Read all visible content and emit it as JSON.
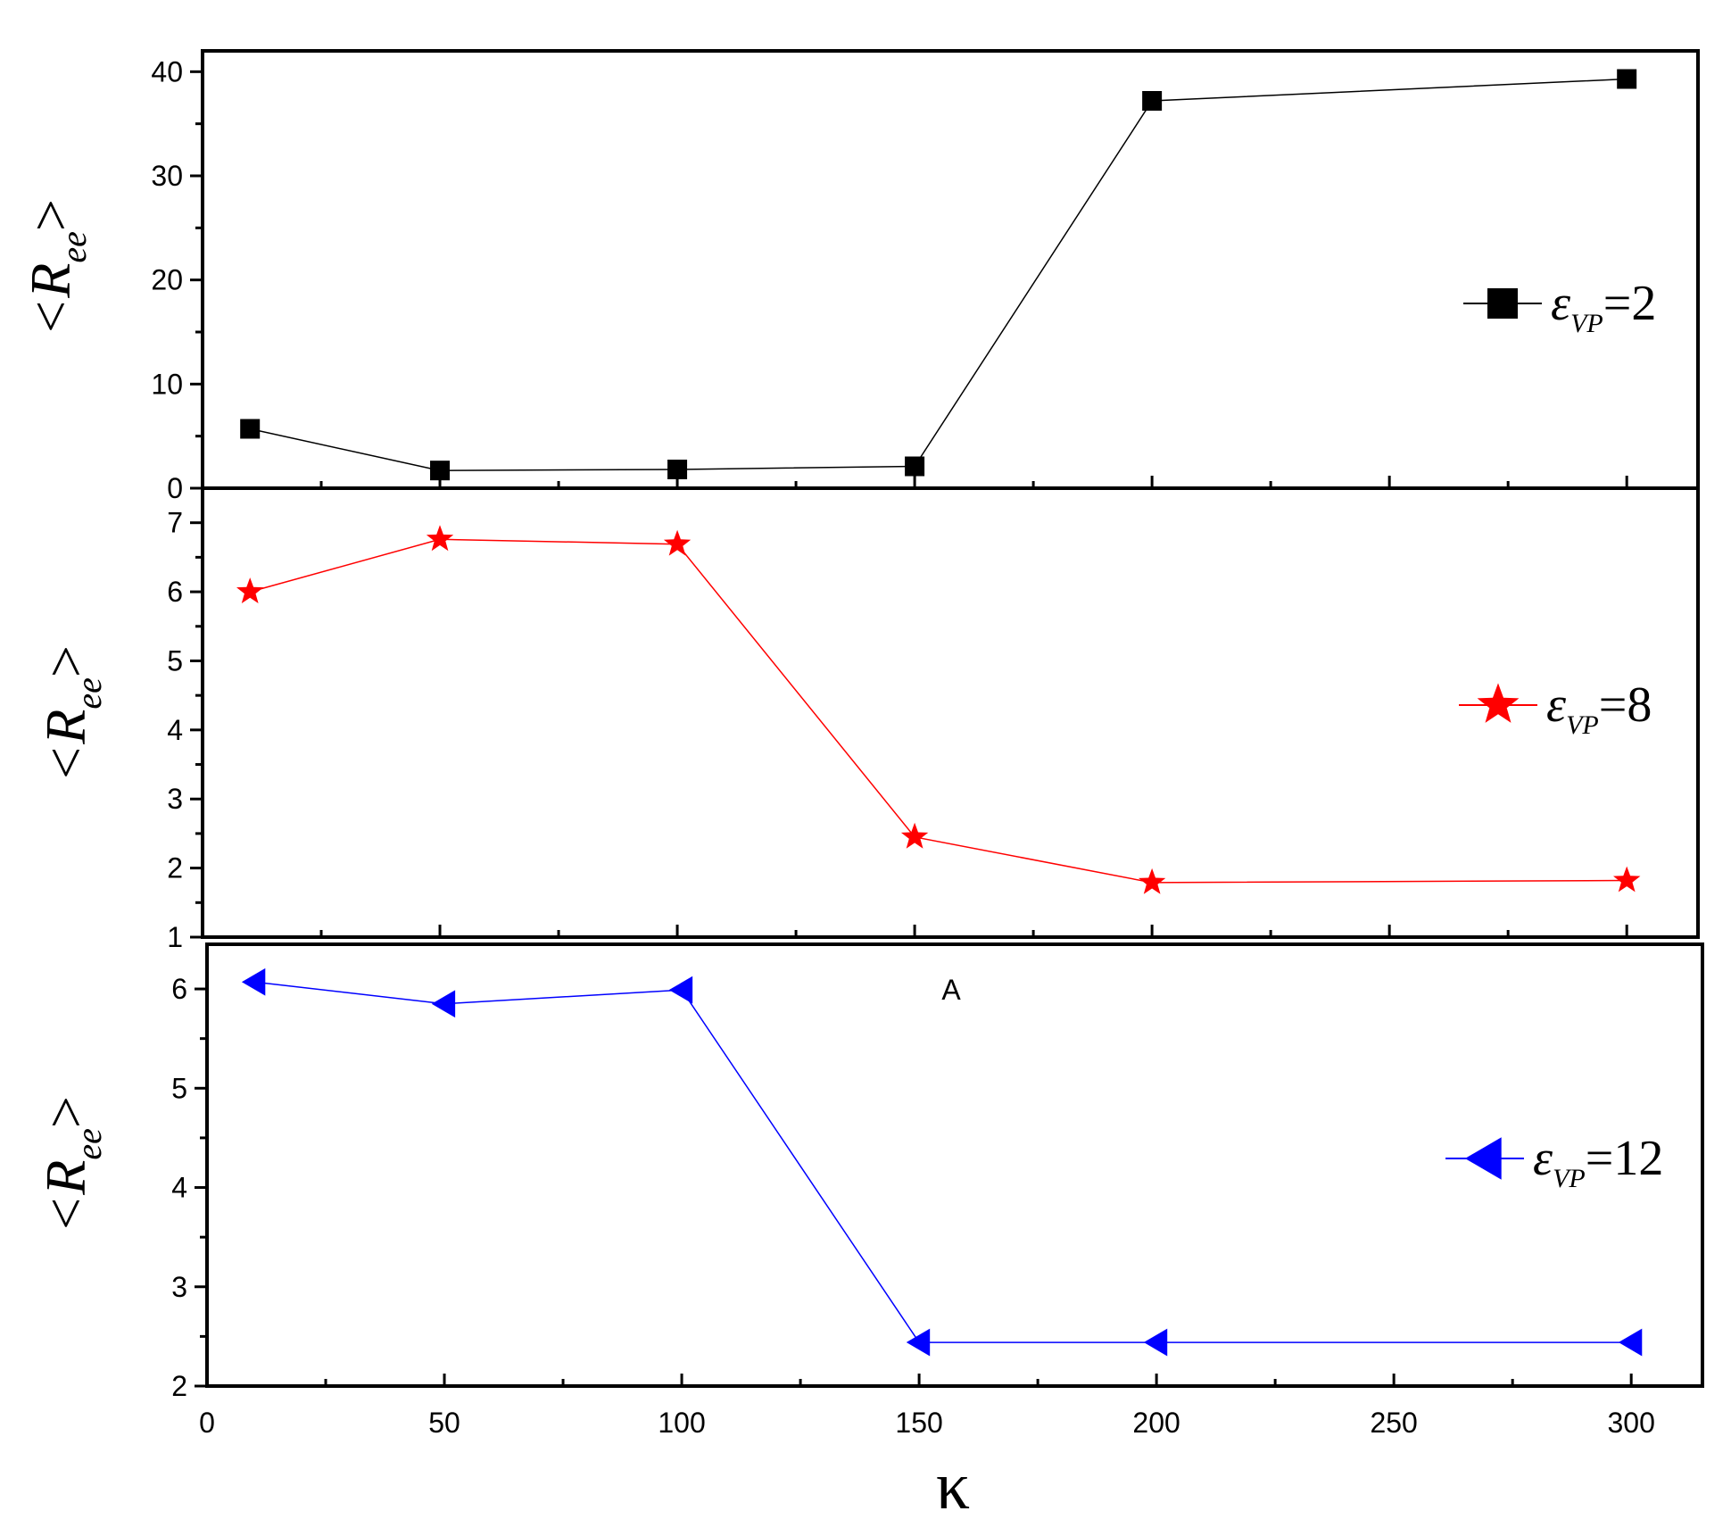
{
  "chart_data": [
    {
      "type": "line",
      "ylabel": "<R",
      "ylabel_sub": "ee",
      "ylabel_close": ">",
      "xlabel": "",
      "ylim": [
        0,
        42
      ],
      "yticks": [
        0,
        10,
        20,
        30,
        40
      ],
      "xlim": [
        0,
        315
      ],
      "xticks": [
        0,
        50,
        100,
        150,
        200,
        250,
        300
      ],
      "show_x_tick_labels": false,
      "series": [
        {
          "name": "ε",
          "legend_sub": "VP",
          "legend_value": "=2",
          "color": "#000000",
          "marker": "square",
          "x": [
            10,
            50,
            100,
            150,
            200,
            300
          ],
          "y": [
            5.7,
            1.7,
            1.8,
            2.1,
            37.2,
            39.3
          ]
        }
      ]
    },
    {
      "type": "line",
      "ylabel": "<R",
      "ylabel_sub": "ee",
      "ylabel_close": ">",
      "xlabel": "",
      "ylim": [
        1,
        7.5
      ],
      "yticks": [
        1,
        2,
        3,
        4,
        5,
        6,
        7
      ],
      "xlim": [
        0,
        315
      ],
      "xticks": [
        0,
        50,
        100,
        150,
        200,
        250,
        300
      ],
      "show_x_tick_labels": false,
      "series": [
        {
          "name": "ε",
          "legend_sub": "VP",
          "legend_value": "=8",
          "color": "#ff0000",
          "marker": "star",
          "x": [
            10,
            50,
            100,
            150,
            200,
            300
          ],
          "y": [
            6.0,
            6.76,
            6.69,
            2.45,
            1.79,
            1.82
          ]
        }
      ]
    },
    {
      "type": "line",
      "ylabel": "<R",
      "ylabel_sub": "ee",
      "ylabel_close": ">",
      "xlabel": "κ",
      "ylim": [
        2,
        6.45
      ],
      "yticks": [
        2,
        3,
        4,
        5,
        6
      ],
      "xlim": [
        0,
        315
      ],
      "xticks": [
        0,
        50,
        100,
        150,
        200,
        250,
        300
      ],
      "show_x_tick_labels": true,
      "annotation": "A",
      "series": [
        {
          "name": "ε",
          "legend_sub": "VP",
          "legend_value": "=12",
          "color": "#0000ff",
          "marker": "triangle-left",
          "x": [
            10,
            50,
            100,
            150,
            200,
            300
          ],
          "y": [
            6.07,
            5.85,
            5.99,
            2.44,
            2.44,
            2.44
          ]
        }
      ]
    }
  ]
}
